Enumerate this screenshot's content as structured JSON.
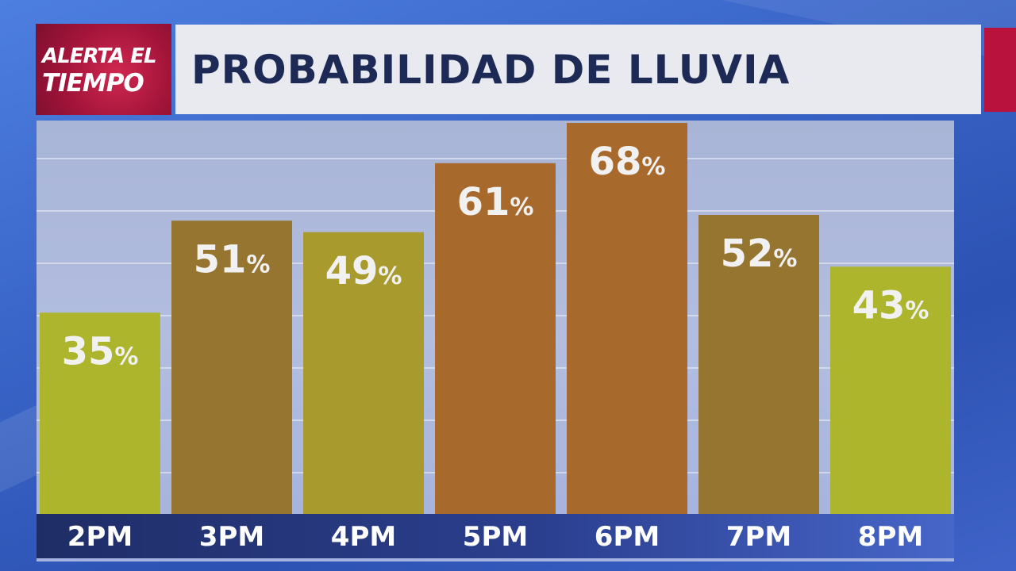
{
  "logo": {
    "line1": "ALERTA EL",
    "line2": "TIEMPO"
  },
  "title": "PROBABILIDAD DE LLUVIA",
  "colors": {
    "logo_red": "#a3143a",
    "accent_red": "#b8123d",
    "title_text": "#1c2a55",
    "bar_yellow": "#acb52c",
    "bar_olive": "#a89a2c",
    "bar_brown": "#957530",
    "bar_orange": "#a8692c"
  },
  "chart_data": {
    "type": "bar",
    "title": "PROBABILIDAD DE LLUVIA",
    "categories": [
      "2PM",
      "3PM",
      "4PM",
      "5PM",
      "6PM",
      "7PM",
      "8PM"
    ],
    "values": [
      35,
      51,
      49,
      61,
      68,
      52,
      43
    ],
    "value_labels": [
      "35%",
      "51%",
      "49%",
      "61%",
      "68%",
      "52%",
      "43%"
    ],
    "bar_colors": [
      "#acb52c",
      "#957530",
      "#a89a2c",
      "#a8692c",
      "#a8692c",
      "#957530",
      "#acb52c"
    ],
    "unit": "%",
    "ylim": [
      0,
      70
    ],
    "grid": true,
    "legend": "none"
  }
}
